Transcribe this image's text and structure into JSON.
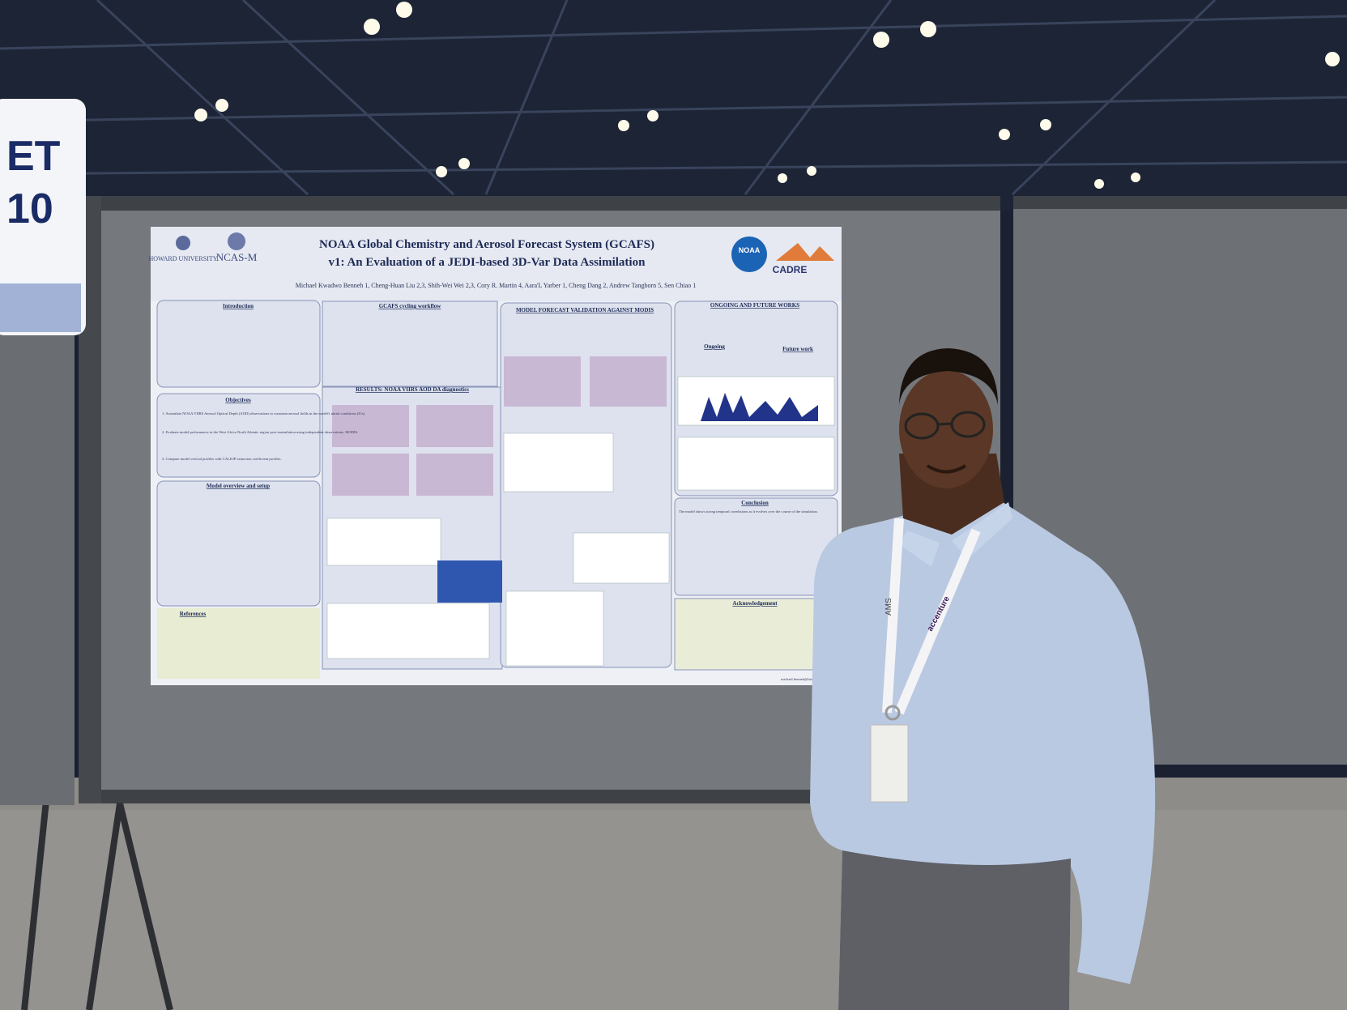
{
  "sign": {
    "lines": [
      "ET",
      "10"
    ]
  },
  "poster": {
    "logos": {
      "left": [
        "HOWARD UNIVERSITY",
        "NCAS-M"
      ],
      "right": [
        "NOAA",
        "CADRE"
      ]
    },
    "title_lines": [
      "NOAA Global Chemistry and Aerosol Forecast System (GCAFS)",
      "v1: An Evaluation of a JEDI-based 3D-Var Data Assimilation"
    ],
    "authors": "Michael Kwadwo Benneh 1, Cheng-Huan Liu 2,3, Shih-Wei Wei 2,3, Cory R. Martin 4, Aara'L Yarber 1, Cheng Dang 2, Andrew Tangborn 5, Sen Chiao 1",
    "sections": {
      "introduction": "Introduction",
      "workflow": "GCAFS cycling workflow",
      "objectives": "Objectives",
      "results": "RESULTS: NOAA VIIRS AOD DA diagnostics",
      "model_overview": "Model overview and setup",
      "references": "References",
      "validation": "MODEL FORECAST VALIDATION AGAINST MODIS",
      "future": "ONGOING AND FUTURE WORKS",
      "ongoing": "Ongoing",
      "future_work": "Future work",
      "conclusion": "Conclusion",
      "acknowledgement": "Acknowledgement"
    },
    "objectives": [
      "1. Assimilate NOAA VIIRS Aerosol Optical Depth (AOD) observations to constrain aerosol fields in the model's initial conditions (ICs).",
      "2. Evaluate model performance in the West Africa North Atlantic region post-assimilation using independent observations, MODIS.",
      "3. Compare model vertical profiles with CALIOP extinction coefficient profiles."
    ],
    "conclusion": "The model shows strong temporal correlations as it evolves over the course of the simulation.",
    "email": "michael.benneh@bison.howard.edu"
  },
  "lanyard": [
    "AMS",
    "accenture"
  ]
}
